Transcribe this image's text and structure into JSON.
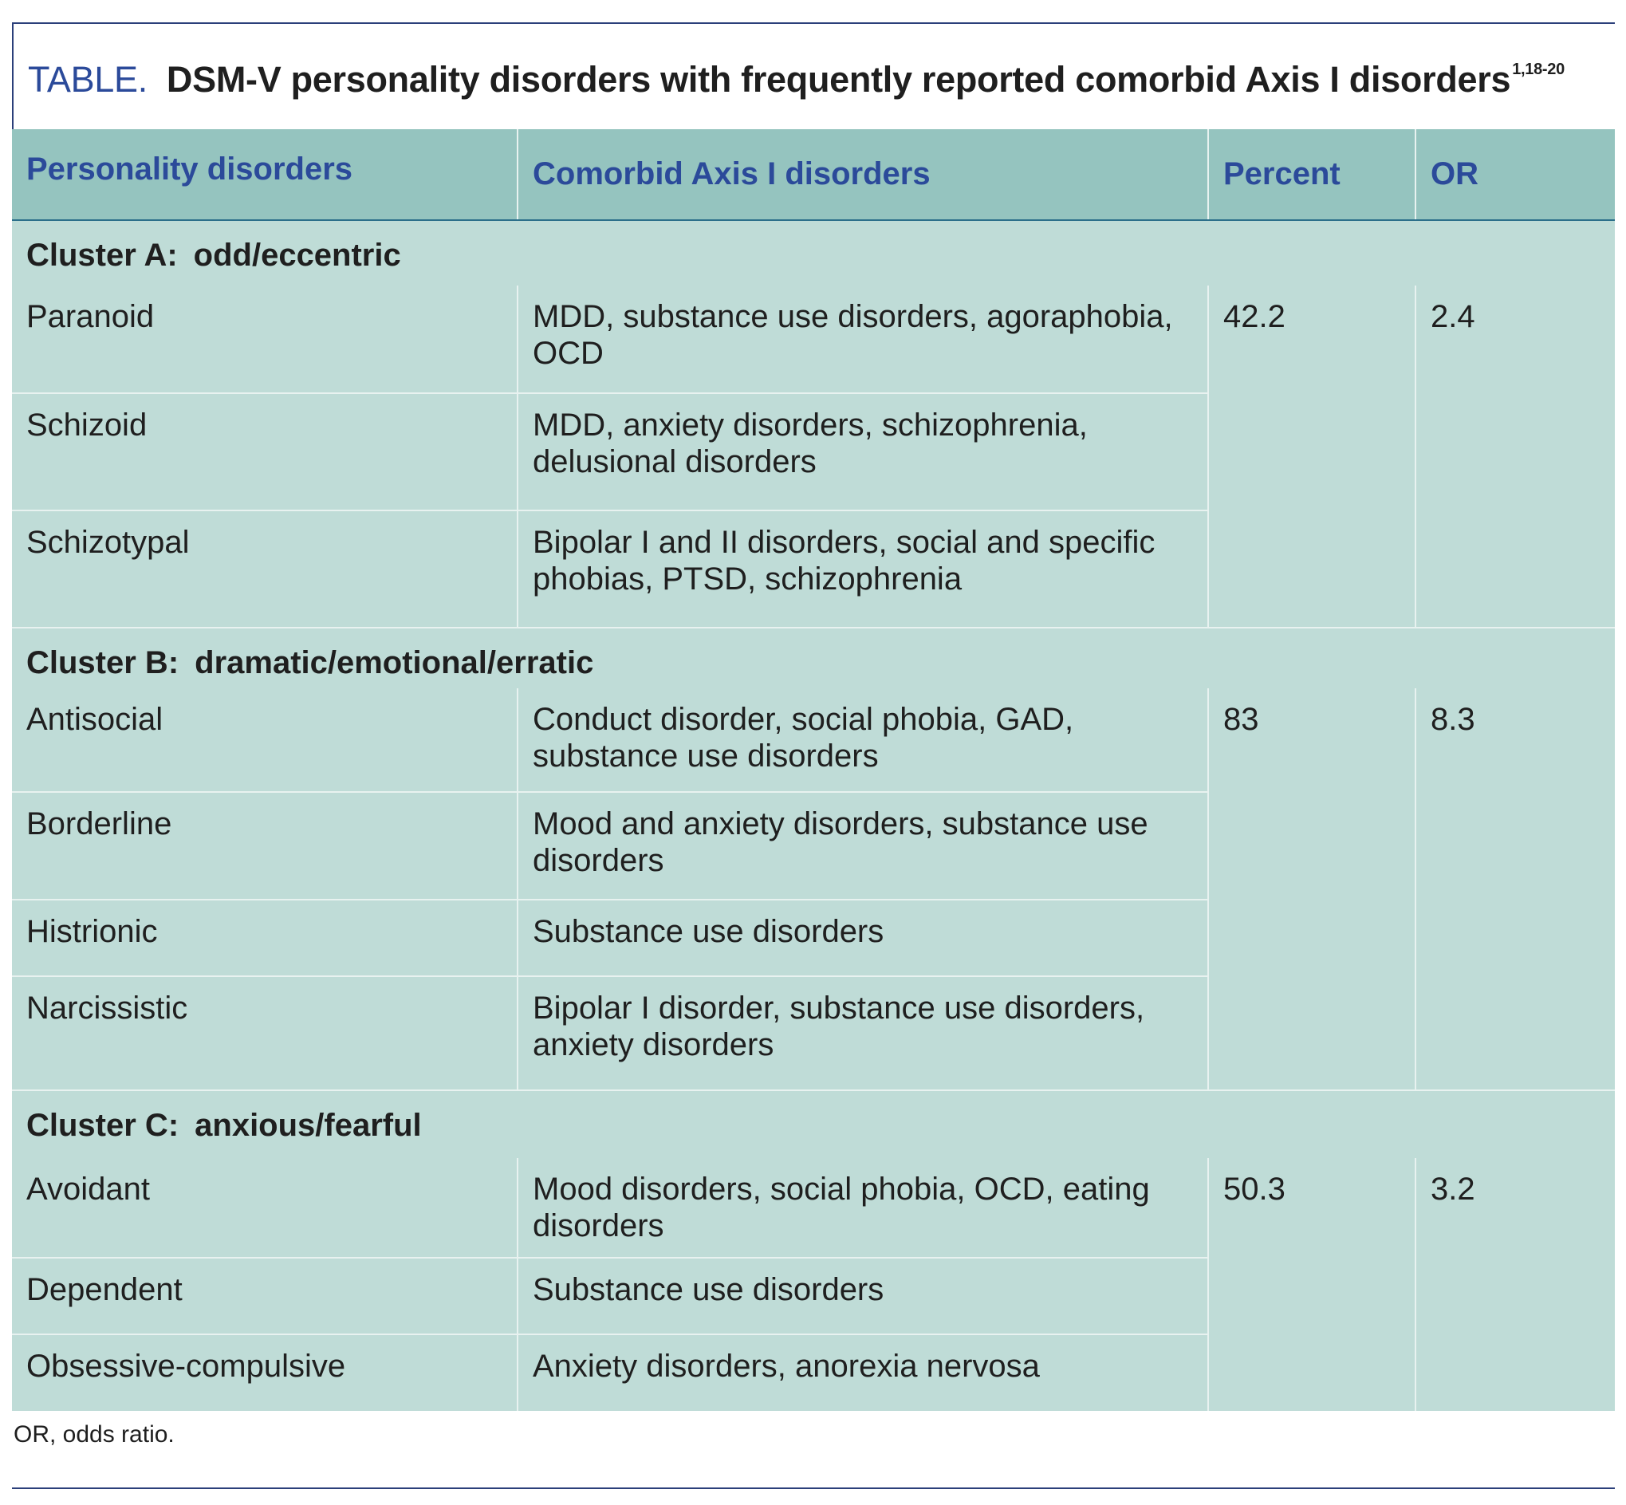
{
  "title": {
    "label": "TABLE.",
    "text": "DSM-V personality disorders with frequently reported comorbid Axis I disorders",
    "superscript": "1,18-20"
  },
  "headers": {
    "col1": "Personality disorders",
    "col2": "Comorbid Axis I disorders",
    "col3": "Percent",
    "col4": "OR"
  },
  "clusters": [
    {
      "name": "Cluster A:",
      "type": "odd/eccentric",
      "percent": "42.2",
      "or": "2.4",
      "rows": [
        {
          "disorder": "Paranoid",
          "comorbid": "MDD, substance use disorders, agoraphobia, OCD"
        },
        {
          "disorder": "Schizoid",
          "comorbid": "MDD, anxiety disorders, schizophrenia, delusional disorders"
        },
        {
          "disorder": "Schizotypal",
          "comorbid": "Bipolar I and II disorders, social and specific phobias, PTSD, schizophrenia"
        }
      ]
    },
    {
      "name": "Cluster B:",
      "type": "dramatic/emotional/erratic",
      "percent": "83",
      "or": "8.3",
      "rows": [
        {
          "disorder": "Antisocial",
          "comorbid": "Conduct disorder, social phobia, GAD, substance use disorders"
        },
        {
          "disorder": "Borderline",
          "comorbid": "Mood and anxiety disorders, substance use disorders"
        },
        {
          "disorder": "Histrionic",
          "comorbid": "Substance use disorders"
        },
        {
          "disorder": "Narcissistic",
          "comorbid": "Bipolar I disorder, substance use disorders, anxiety disorders"
        }
      ]
    },
    {
      "name": "Cluster C:",
      "type": "anxious/fearful",
      "percent": "50.3",
      "or": "3.2",
      "rows": [
        {
          "disorder": "Avoidant",
          "comorbid": "Mood disorders, social phobia, OCD, eating disorders"
        },
        {
          "disorder": "Dependent",
          "comorbid": "Substance use disorders"
        },
        {
          "disorder": "Obsessive-compulsive",
          "comorbid": "Anxiety disorders, anorexia nervosa"
        }
      ]
    }
  ],
  "footnote": "OR, odds ratio.",
  "colors": {
    "header_bg": "#95c4bf",
    "body_bg": "#bfdcd7",
    "accent_blue": "#2b4a9a"
  }
}
